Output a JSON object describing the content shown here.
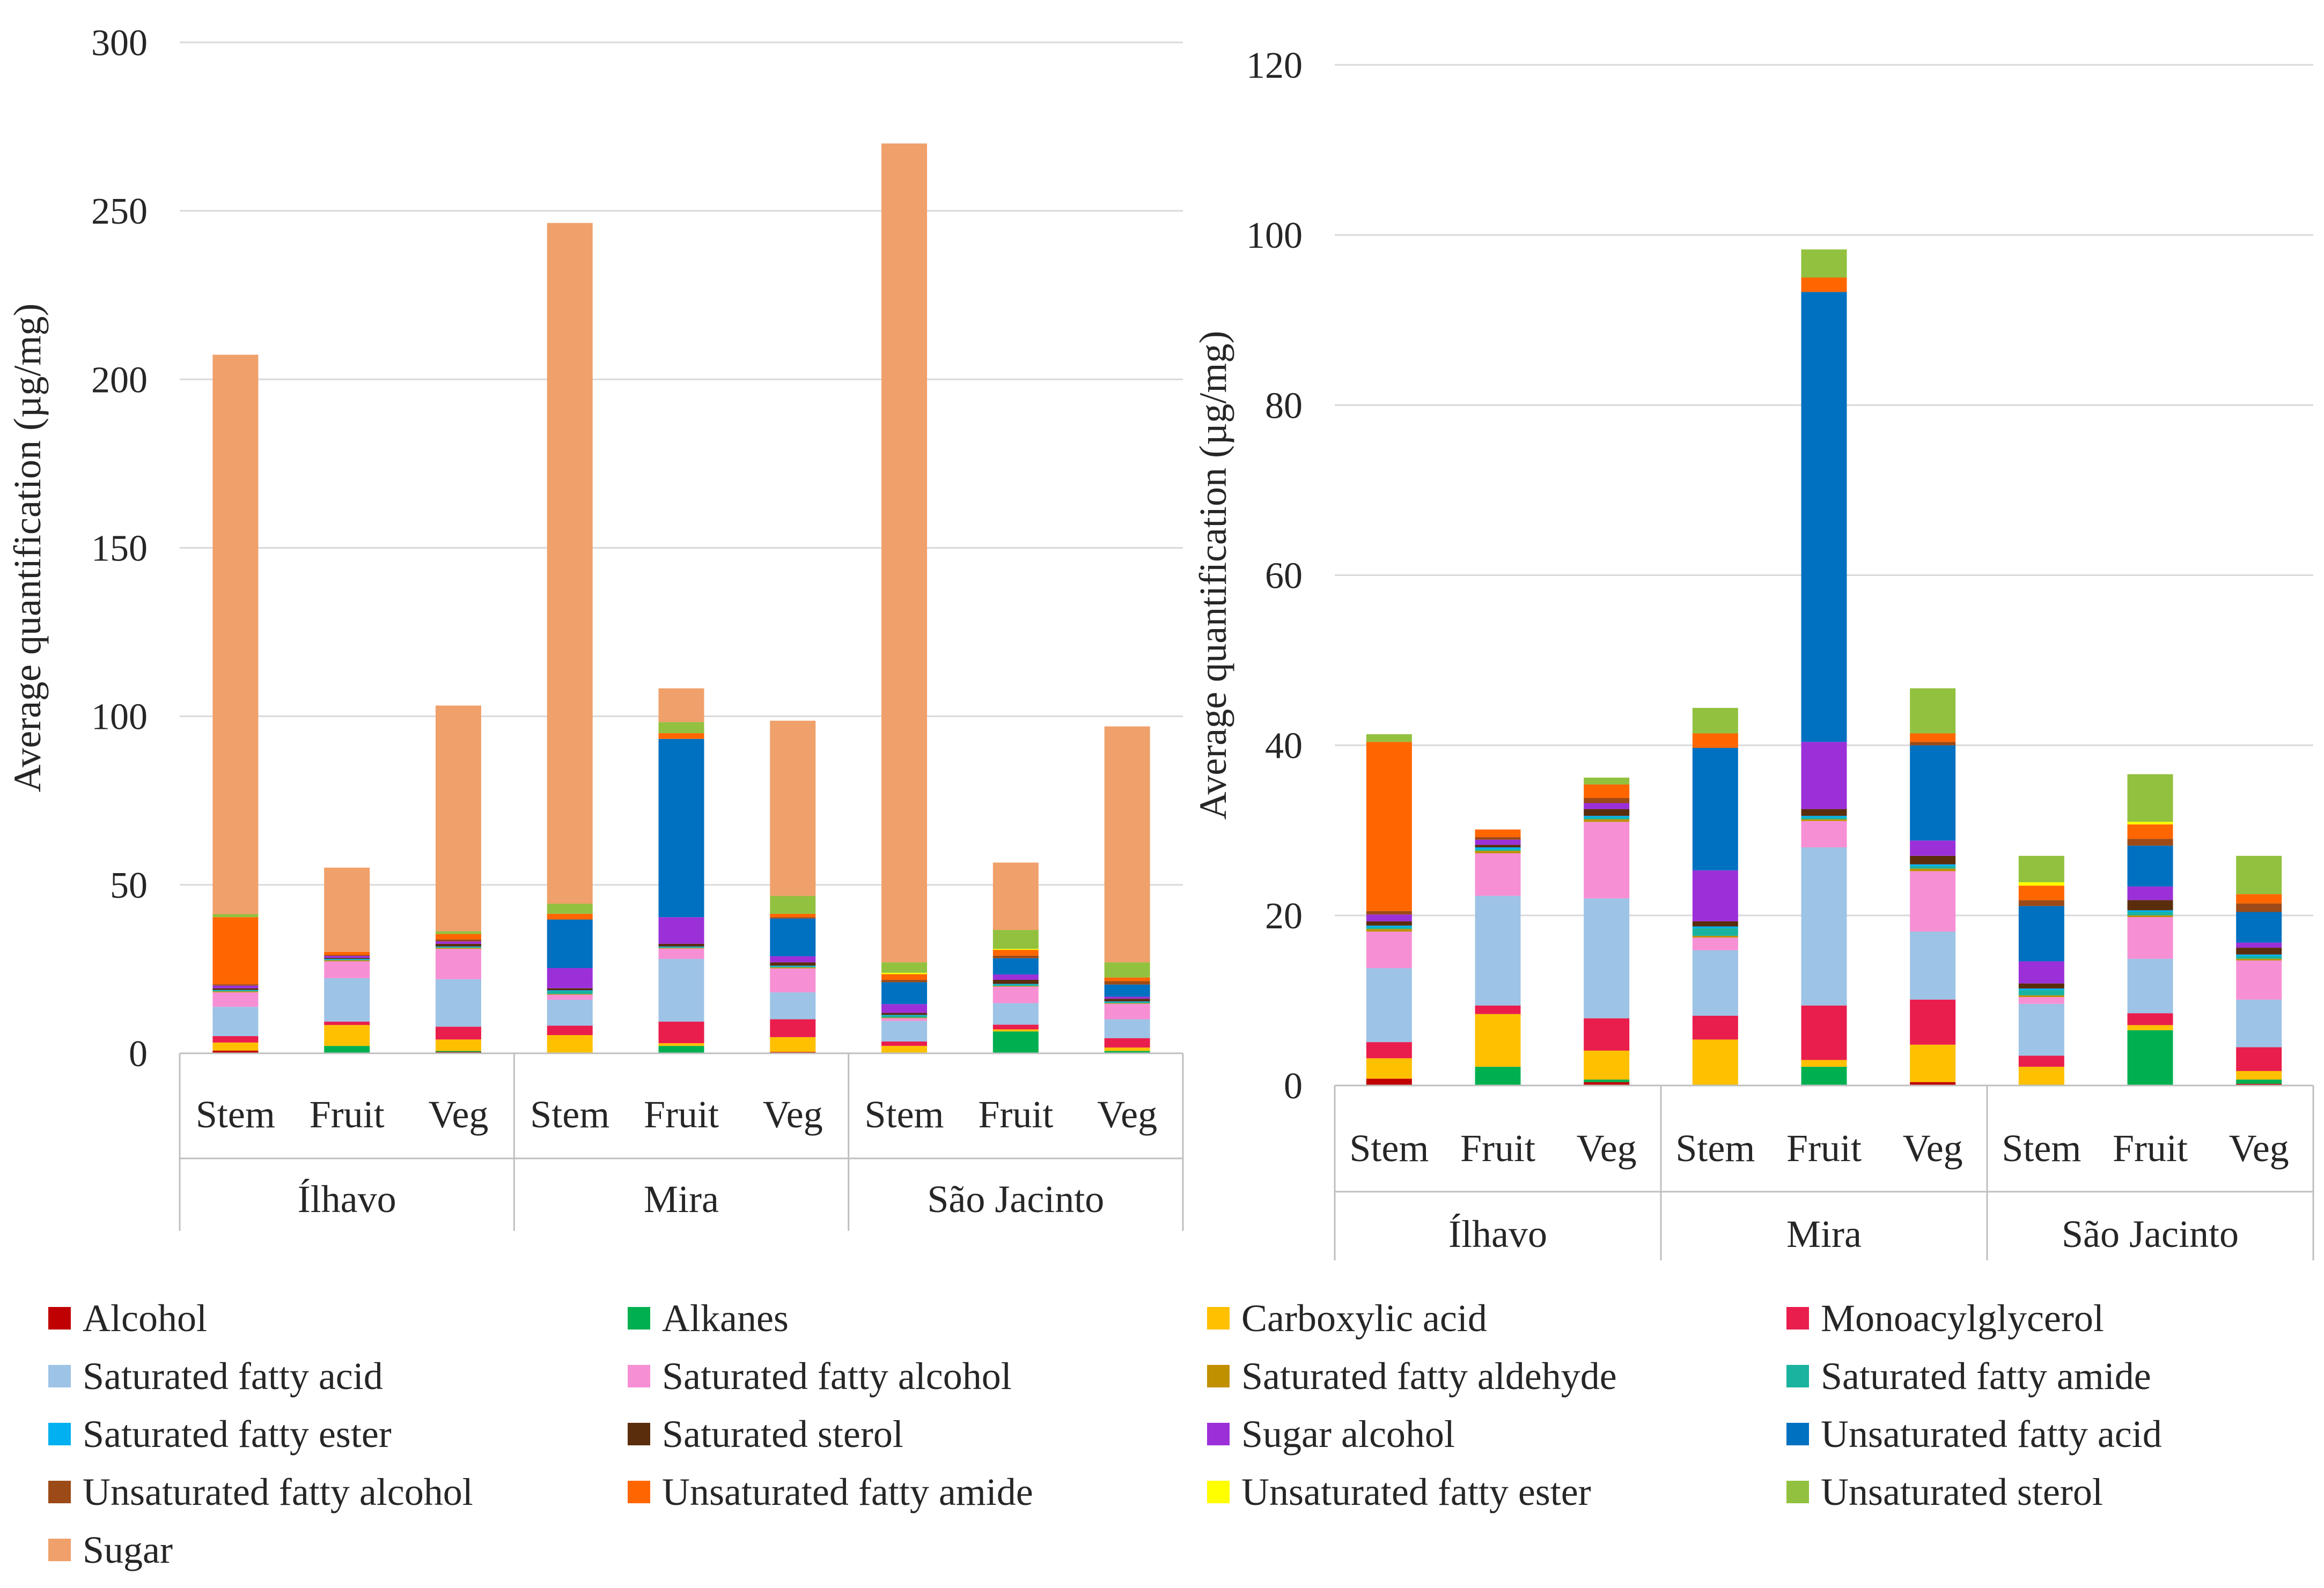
{
  "colors": {
    "Alcohol": "#c00000",
    "Alkanes": "#00b050",
    "Carboxylic acid": "#ffc000",
    "Monoacylglycerol": "#e91e4d",
    "Saturated fatty acid": "#9dc3e6",
    "Saturated fatty alcohol": "#f78fd4",
    "Saturated fatty aldehyde": "#c09000",
    "Saturated fatty amide": "#19b3a0",
    "Saturated fatty ester": "#00b0f0",
    "Saturated sterol": "#5a2d0c",
    "Sugar alcohol": "#9b30d9",
    "Unsaturated fatty acid": "#0070c0",
    "Unsaturated fatty alcohol": "#9c4a17",
    "Unsaturated fatty amide": "#ff6600",
    "Unsaturated fatty ester": "#ffff00",
    "Unsaturated sterol": "#92c13f",
    "Sugar": "#f0a06a"
  },
  "legend": [
    "Alcohol",
    "Alkanes",
    "Carboxylic acid",
    "Monoacylglycerol",
    "Saturated fatty acid",
    "Saturated fatty alcohol",
    "Saturated fatty aldehyde",
    "Saturated fatty amide",
    "Saturated fatty ester",
    "Saturated sterol",
    "Sugar alcohol",
    "Unsaturated fatty acid",
    "Unsaturated fatty alcohol",
    "Unsaturated fatty amide",
    "Unsaturated fatty ester",
    "Unsaturated sterol",
    "Sugar"
  ],
  "chart_data": [
    {
      "type": "bar",
      "stacked": true,
      "ylabel": "Average quantification (µg/mg)",
      "ylim": [
        0,
        300
      ],
      "yticks": [
        0,
        50,
        100,
        150,
        200,
        250,
        300
      ],
      "groups": [
        "Ílhavo",
        "Mira",
        "São Jacinto"
      ],
      "categories": [
        "Stem",
        "Fruit",
        "Veg",
        "Stem",
        "Fruit",
        "Veg",
        "Stem",
        "Fruit",
        "Veg"
      ],
      "grid": true,
      "series": [
        {
          "name": "Alcohol",
          "values": [
            0.8,
            0,
            0.4,
            0,
            0,
            0.4,
            0,
            0,
            0.2
          ]
        },
        {
          "name": "Alkanes",
          "values": [
            0,
            2.2,
            0.3,
            0,
            2.2,
            0,
            0,
            6.5,
            0.5
          ]
        },
        {
          "name": "Carboxylic acid",
          "values": [
            2.4,
            6.2,
            3.4,
            5.4,
            0.8,
            4.4,
            2.2,
            0.6,
            1.0
          ]
        },
        {
          "name": "Monoacylglycerol",
          "values": [
            1.9,
            1.0,
            3.8,
            2.8,
            6.4,
            5.3,
            1.3,
            1.4,
            2.8
          ]
        },
        {
          "name": "Saturated fatty acid",
          "values": [
            8.7,
            12.9,
            14.1,
            7.7,
            18.6,
            8.0,
            6.1,
            6.4,
            5.6
          ]
        },
        {
          "name": "Saturated fatty alcohol",
          "values": [
            4.3,
            5.0,
            9.0,
            1.5,
            3.1,
            7.1,
            0.8,
            4.9,
            4.6
          ]
        },
        {
          "name": "Saturated fatty aldehyde",
          "values": [
            0.3,
            0.3,
            0.3,
            0.2,
            0.2,
            0.3,
            0.2,
            0.2,
            0.2
          ]
        },
        {
          "name": "Saturated fatty amide",
          "values": [
            0.2,
            0.2,
            0.2,
            0.9,
            0.2,
            0.3,
            0.6,
            0.4,
            0.3
          ]
        },
        {
          "name": "Saturated fatty ester",
          "values": [
            0.2,
            0.2,
            0.2,
            0.2,
            0.2,
            0.2,
            0.2,
            0.2,
            0.2
          ]
        },
        {
          "name": "Saturated sterol",
          "values": [
            0.5,
            0.3,
            0.8,
            0.6,
            0.8,
            1.0,
            0.6,
            1.2,
            0.8
          ]
        },
        {
          "name": "Sugar alcohol",
          "values": [
            0.8,
            0.6,
            0.7,
            6.0,
            7.9,
            1.8,
            2.6,
            1.6,
            0.6
          ]
        },
        {
          "name": "Unsaturated fatty acid",
          "values": [
            0,
            0,
            0,
            14.4,
            52.9,
            11.2,
            6.5,
            4.8,
            3.6
          ]
        },
        {
          "name": "Unsaturated fatty alcohol",
          "values": [
            0.4,
            0.3,
            0.6,
            0,
            0,
            0.4,
            0.7,
            0.8,
            1.0
          ]
        },
        {
          "name": "Unsaturated fatty amide",
          "values": [
            19.9,
            0.9,
            1.6,
            1.7,
            1.7,
            1.0,
            1.7,
            1.7,
            1.1
          ]
        },
        {
          "name": "Unsaturated fatty ester",
          "values": [
            0,
            0,
            0,
            0,
            0,
            0,
            0.4,
            0.3,
            0
          ]
        },
        {
          "name": "Unsaturated sterol",
          "values": [
            0.9,
            0,
            0.8,
            3.0,
            3.3,
            5.3,
            3.1,
            5.6,
            4.5
          ]
        },
        {
          "name": "Sugar",
          "values": [
            166,
            25,
            67,
            202,
            10,
            52,
            243,
            20,
            70
          ]
        }
      ]
    },
    {
      "type": "bar",
      "stacked": true,
      "ylabel": "Average quantification (µg/mg)",
      "ylim": [
        0,
        120
      ],
      "yticks": [
        0,
        20,
        40,
        60,
        80,
        100,
        120
      ],
      "groups": [
        "Ílhavo",
        "Mira",
        "São Jacinto"
      ],
      "categories": [
        "Stem",
        "Fruit",
        "Veg",
        "Stem",
        "Fruit",
        "Veg",
        "Stem",
        "Fruit",
        "Veg"
      ],
      "grid": true,
      "series": [
        {
          "name": "Alcohol",
          "values": [
            0.8,
            0,
            0.4,
            0,
            0,
            0.4,
            0,
            0,
            0.2
          ]
        },
        {
          "name": "Alkanes",
          "values": [
            0,
            2.2,
            0.3,
            0,
            2.2,
            0,
            0,
            6.5,
            0.5
          ]
        },
        {
          "name": "Carboxylic acid",
          "values": [
            2.4,
            6.2,
            3.4,
            5.4,
            0.8,
            4.4,
            2.2,
            0.6,
            1.0
          ]
        },
        {
          "name": "Monoacylglycerol",
          "values": [
            1.9,
            1.0,
            3.8,
            2.8,
            6.4,
            5.3,
            1.3,
            1.4,
            2.8
          ]
        },
        {
          "name": "Saturated fatty acid",
          "values": [
            8.7,
            12.9,
            14.1,
            7.7,
            18.6,
            8.0,
            6.1,
            6.4,
            5.6
          ]
        },
        {
          "name": "Saturated fatty alcohol",
          "values": [
            4.3,
            5.0,
            9.0,
            1.5,
            3.1,
            7.1,
            0.8,
            4.9,
            4.6
          ]
        },
        {
          "name": "Saturated fatty aldehyde",
          "values": [
            0.3,
            0.3,
            0.3,
            0.2,
            0.2,
            0.3,
            0.2,
            0.2,
            0.2
          ]
        },
        {
          "name": "Saturated fatty amide",
          "values": [
            0.2,
            0.2,
            0.2,
            0.9,
            0.2,
            0.3,
            0.6,
            0.4,
            0.3
          ]
        },
        {
          "name": "Saturated fatty ester",
          "values": [
            0.2,
            0.2,
            0.2,
            0.2,
            0.2,
            0.2,
            0.2,
            0.2,
            0.2
          ]
        },
        {
          "name": "Saturated sterol",
          "values": [
            0.5,
            0.3,
            0.8,
            0.6,
            0.8,
            1.0,
            0.6,
            1.2,
            0.8
          ]
        },
        {
          "name": "Sugar alcohol",
          "values": [
            0.8,
            0.6,
            0.7,
            6.0,
            7.9,
            1.8,
            2.6,
            1.6,
            0.6
          ]
        },
        {
          "name": "Unsaturated fatty acid",
          "values": [
            0,
            0,
            0,
            14.4,
            52.9,
            11.2,
            6.5,
            4.8,
            3.6
          ]
        },
        {
          "name": "Unsaturated fatty alcohol",
          "values": [
            0.4,
            0.3,
            0.6,
            0,
            0,
            0.4,
            0.7,
            0.8,
            1.0
          ]
        },
        {
          "name": "Unsaturated fatty amide",
          "values": [
            19.9,
            0.9,
            1.6,
            1.7,
            1.7,
            1.0,
            1.7,
            1.7,
            1.1
          ]
        },
        {
          "name": "Unsaturated fatty ester",
          "values": [
            0,
            0,
            0,
            0,
            0,
            0,
            0.4,
            0.3,
            0
          ]
        },
        {
          "name": "Unsaturated sterol",
          "values": [
            0.9,
            0,
            0.8,
            3.0,
            3.3,
            5.3,
            3.1,
            5.6,
            4.5
          ]
        }
      ]
    }
  ]
}
